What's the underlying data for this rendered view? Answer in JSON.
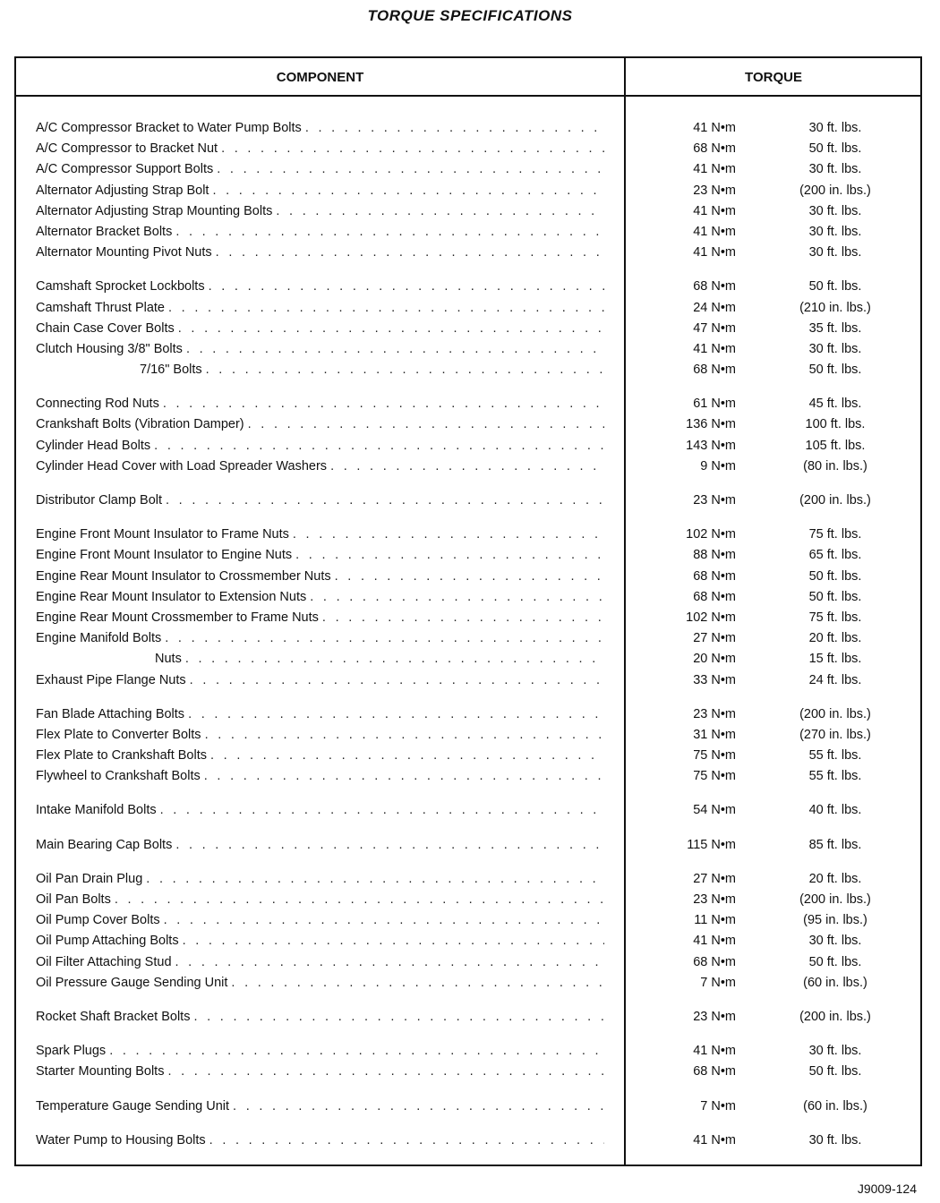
{
  "title": "TORQUE SPECIFICATIONS",
  "headers": {
    "component": "COMPONENT",
    "torque": "TORQUE"
  },
  "groups": [
    [
      [
        "A/C Compressor Bracket to Water Pump Bolts",
        "41 N•m",
        "30 ft. lbs."
      ],
      [
        "A/C Compressor to Bracket Nut",
        "68 N•m",
        "50 ft. lbs."
      ],
      [
        "A/C Compressor Support Bolts",
        "41 N•m",
        "30 ft. lbs."
      ],
      [
        "Alternator Adjusting Strap Bolt",
        "23 N•m",
        "(200 in. lbs.)"
      ],
      [
        "Alternator Adjusting Strap Mounting Bolts",
        "41 N•m",
        "30 ft. lbs."
      ],
      [
        "Alternator Bracket Bolts",
        "41 N•m",
        "30 ft. lbs."
      ],
      [
        "Alternator Mounting Pivot Nuts",
        "41 N•m",
        "30 ft. lbs."
      ]
    ],
    [
      [
        "Camshaft Sprocket Lockbolts",
        "68 N•m",
        "50 ft. lbs."
      ],
      [
        "Camshaft Thrust Plate",
        "24 N•m",
        "(210 in. lbs.)"
      ],
      [
        "Chain Case Cover Bolts",
        "47 N•m",
        "35 ft. lbs."
      ],
      [
        "Clutch Housing 3/8\" Bolts",
        "41 N•m",
        "30 ft. lbs."
      ],
      [
        "7/16\" Bolts",
        "68 N•m",
        "50 ft. lbs."
      ]
    ],
    [
      [
        "Connecting Rod Nuts",
        "61 N•m",
        "45 ft. lbs."
      ],
      [
        "Crankshaft Bolts (Vibration Damper)",
        "136 N•m",
        "100 ft. lbs."
      ],
      [
        "Cylinder Head Bolts",
        "143 N•m",
        "105 ft. lbs."
      ],
      [
        "Cylinder Head Cover with Load Spreader Washers",
        "9 N•m",
        "(80 in. lbs.)"
      ]
    ],
    [
      [
        "Distributor Clamp Bolt",
        "23 N•m",
        "(200 in. lbs.)"
      ]
    ],
    [
      [
        "Engine Front Mount Insulator to Frame Nuts",
        "102 N•m",
        "75 ft. lbs."
      ],
      [
        "Engine Front Mount Insulator to Engine Nuts",
        "88 N•m",
        "65 ft. lbs."
      ],
      [
        "Engine Rear Mount Insulator to Crossmember Nuts",
        "68 N•m",
        "50 ft. lbs."
      ],
      [
        "Engine Rear Mount Insulator to Extension Nuts",
        "68 N•m",
        "50 ft. lbs."
      ],
      [
        "Engine Rear Mount Crossmember to Frame Nuts",
        "102 N•m",
        "75 ft. lbs."
      ],
      [
        "Engine Manifold Bolts",
        "27 N•m",
        "20 ft. lbs."
      ],
      [
        "Nuts",
        "20 N•m",
        "15 ft. lbs."
      ],
      [
        "Exhaust Pipe Flange Nuts",
        "33 N•m",
        "24 ft. lbs."
      ]
    ],
    [
      [
        "Fan Blade Attaching Bolts",
        "23 N•m",
        "(200 in. lbs.)"
      ],
      [
        "Flex Plate to Converter Bolts",
        "31 N•m",
        "(270 in. lbs.)"
      ],
      [
        "Flex Plate to Crankshaft Bolts",
        "75 N•m",
        "55 ft. lbs."
      ],
      [
        "Flywheel to Crankshaft Bolts",
        "75 N•m",
        "55 ft. lbs."
      ]
    ],
    [
      [
        "Intake Manifold Bolts",
        "54 N•m",
        "40 ft. lbs."
      ]
    ],
    [
      [
        "Main Bearing Cap Bolts",
        "115 N•m",
        "85 ft. lbs."
      ]
    ],
    [
      [
        "Oil Pan Drain Plug",
        "27 N•m",
        "20 ft. lbs."
      ],
      [
        "Oil Pan Bolts",
        "23 N•m",
        "(200 in. lbs.)"
      ],
      [
        "Oil Pump Cover Bolts",
        "11 N•m",
        "(95 in. lbs.)"
      ],
      [
        "Oil Pump Attaching Bolts",
        "41 N•m",
        "30 ft. lbs."
      ],
      [
        "Oil Filter Attaching Stud",
        "68 N•m",
        "50 ft. lbs."
      ],
      [
        "Oil Pressure Gauge Sending Unit",
        "7 N•m",
        "(60 in. lbs.)"
      ]
    ],
    [
      [
        "Rocket Shaft Bracket Bolts",
        "23 N•m",
        "(200 in. lbs.)"
      ]
    ],
    [
      [
        "Spark Plugs",
        "41 N•m",
        "30 ft. lbs."
      ],
      [
        "Starter Mounting Bolts",
        "68 N•m",
        "50 ft. lbs."
      ]
    ],
    [
      [
        "Temperature Gauge Sending Unit",
        "7 N•m",
        "(60 in. lbs.)"
      ]
    ],
    [
      [
        "Water Pump to Housing Bolts",
        "41 N•m",
        "30 ft. lbs."
      ]
    ]
  ],
  "figure_id": "J9009-124"
}
